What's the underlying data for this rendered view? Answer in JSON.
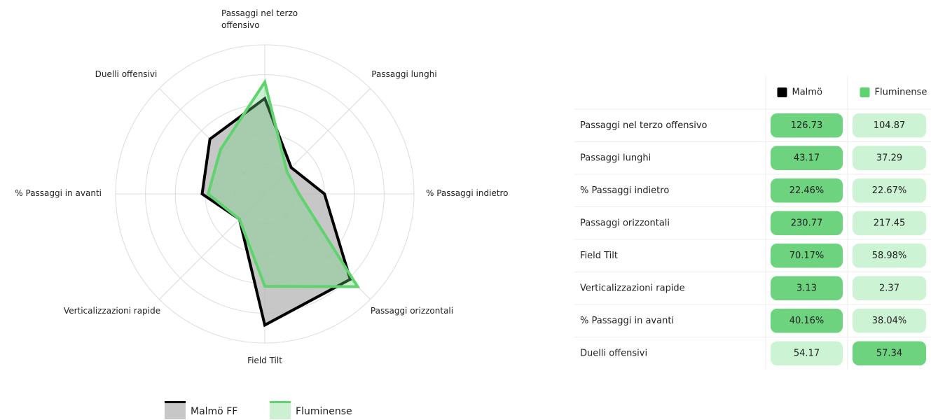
{
  "chart_data": {
    "type": "radar",
    "categories": [
      "Passaggi nel terzo offensivo",
      "Passaggi lunghi",
      "% Passaggi indietro",
      "Passaggi orizzontali",
      "Field Tilt",
      "Verticalizzazioni rapide",
      "% Passaggi in avanti",
      "Duelli offensivi"
    ],
    "rlim": [
      0,
      100
    ],
    "rticks": [
      20,
      40,
      60,
      80,
      100
    ],
    "grid": true,
    "series": [
      {
        "name": "Malmö FF",
        "color": "#000000",
        "fill": "#bdbdbd",
        "values": [
          64,
          25,
          40,
          81,
          88,
          24,
          42,
          52
        ]
      },
      {
        "name": "Fluminense",
        "color": "#5fd36e",
        "fill": "#6dd37f",
        "values": [
          75,
          21,
          23,
          88,
          62,
          24,
          38,
          42
        ]
      }
    ],
    "legend": "bottom"
  },
  "table": {
    "columns": [
      "Malmö",
      "Fluminense"
    ],
    "column_colors": [
      "#000000",
      "#5fd36e"
    ],
    "best_color": "#6dd37f",
    "other_color": "#cdf3d5",
    "rows": [
      {
        "label": "Passaggi nel terzo offensivo",
        "values": [
          "126.73",
          "104.87"
        ],
        "best": 0
      },
      {
        "label": "Passaggi lunghi",
        "values": [
          "43.17",
          "37.29"
        ],
        "best": 0
      },
      {
        "label": "% Passaggi indietro",
        "values": [
          "22.46%",
          "22.67%"
        ],
        "best": 0
      },
      {
        "label": "Passaggi orizzontali",
        "values": [
          "230.77",
          "217.45"
        ],
        "best": 0
      },
      {
        "label": "Field Tilt",
        "values": [
          "70.17%",
          "58.98%"
        ],
        "best": 0
      },
      {
        "label": "Verticalizzazioni rapide",
        "values": [
          "3.13",
          "2.37"
        ],
        "best": 0
      },
      {
        "label": "% Passaggi in avanti",
        "values": [
          "40.16%",
          "38.04%"
        ],
        "best": 0
      },
      {
        "label": "Duelli offensivi",
        "values": [
          "54.17",
          "57.34"
        ],
        "best": 1
      }
    ]
  }
}
